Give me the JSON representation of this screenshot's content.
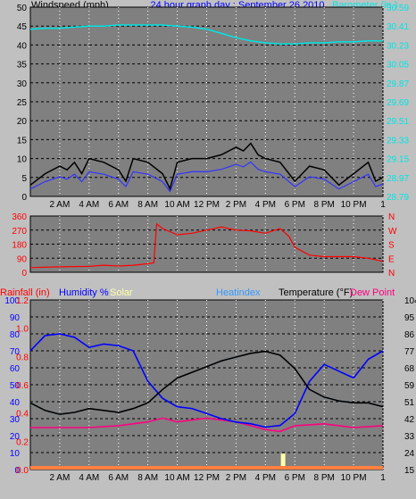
{
  "header": {
    "left_label": "Windspeed (mph)",
    "title": "24 hour graph day : September 26 2010",
    "right_label": "Barometer (in.)"
  },
  "colors": {
    "panel": "#808080",
    "grid_h": "#000000",
    "grid_v": "#ffffff",
    "wind": "#000000",
    "wind_avg": "#3333ff",
    "barometer": "#00e5e5",
    "direction": "#ff0000",
    "humidity": "#0000ff",
    "temperature": "#000000",
    "dew_point": "#ff0080",
    "heat_index": "#3399ff",
    "rain": "#ff8040",
    "solar": "#ffffaa",
    "rain_label": "#ff0000",
    "humidity_label": "#0000ff",
    "solar_label": "#ffffaa",
    "heatindex_label": "#3399ff",
    "temperature_label": "#000000",
    "dewpoint_label": "#ff0080"
  },
  "chart_data": [
    {
      "type": "line",
      "name": "wind_barometer",
      "x_unit": "hour",
      "xlim": [
        0,
        24
      ],
      "x_ticks": [
        "2 AM",
        "4 AM",
        "6 AM",
        "8 AM",
        "10 AM",
        "12 PM",
        "2 PM",
        "4 PM",
        "6 PM",
        "8 PM",
        "10 PM",
        "1"
      ],
      "x_tick_hours": [
        2,
        4,
        6,
        8,
        10,
        12,
        14,
        16,
        18,
        20,
        22,
        24
      ],
      "ylabel_left": "Windspeed (mph)",
      "ylim_left": [
        0,
        50
      ],
      "y_ticks_left": [
        "0",
        "5",
        "10",
        "15",
        "20",
        "25",
        "30",
        "35",
        "40",
        "45",
        "50"
      ],
      "ylabel_right": "Barometer (in.)",
      "ylim_right": [
        28.79,
        30.59
      ],
      "y_ticks_right": [
        "28.79",
        "28.97",
        "29.15",
        "29.33",
        "29.51",
        "29.69",
        "29.87",
        "30.05",
        "30.23",
        "30.41",
        "30.59"
      ],
      "series": [
        {
          "name": "Windspeed",
          "axis": "left",
          "x": [
            0,
            1,
            2,
            2.5,
            3,
            3.5,
            4,
            5,
            6,
            6.5,
            7,
            8,
            9,
            9.5,
            10,
            11,
            12,
            13,
            14,
            14.5,
            15,
            15.5,
            16,
            17,
            18,
            18.5,
            19,
            20,
            21,
            22,
            23,
            23.5,
            24
          ],
          "y": [
            3,
            6,
            8,
            7,
            9,
            6,
            10,
            9,
            7,
            4,
            10,
            9,
            6,
            2,
            9,
            10,
            10,
            11,
            13,
            12,
            14,
            11,
            10,
            9,
            4,
            6,
            8,
            7,
            3,
            6,
            9,
            4,
            5
          ]
        },
        {
          "name": "Barometer",
          "axis": "right",
          "x": [
            0,
            1,
            2,
            3,
            4,
            5,
            6,
            7,
            8,
            9,
            10,
            11,
            12,
            13,
            14,
            15,
            16,
            17,
            18,
            19,
            20,
            21,
            22,
            23,
            24
          ],
          "y": [
            30.38,
            30.39,
            30.39,
            30.4,
            30.41,
            30.41,
            30.42,
            30.42,
            30.42,
            30.42,
            30.41,
            30.4,
            30.38,
            30.34,
            30.3,
            30.27,
            30.25,
            30.24,
            30.24,
            30.25,
            30.25,
            30.26,
            30.26,
            30.27,
            30.27
          ]
        }
      ]
    },
    {
      "type": "line",
      "name": "wind_direction",
      "xlim": [
        0,
        24
      ],
      "ylim": [
        0,
        360
      ],
      "y_ticks_left": [
        "0",
        "90",
        "180",
        "270",
        "360"
      ],
      "y_ticks_right": [
        "N",
        "E",
        "S",
        "W",
        "N"
      ],
      "series": [
        {
          "name": "Wind direction",
          "x": [
            0,
            2,
            4,
            5,
            6,
            7,
            8,
            8.4,
            8.6,
            9,
            10,
            11,
            12,
            13,
            14,
            15,
            16,
            17,
            17.6,
            18,
            19,
            20,
            21,
            22,
            23,
            24
          ],
          "y": [
            30,
            35,
            38,
            45,
            40,
            45,
            55,
            60,
            310,
            280,
            240,
            250,
            270,
            290,
            270,
            265,
            250,
            280,
            230,
            160,
            110,
            100,
            100,
            100,
            90,
            70
          ]
        }
      ]
    },
    {
      "type": "line",
      "name": "temperature_humidity",
      "xlim": [
        0,
        24
      ],
      "ylim_rain": [
        0,
        1.2
      ],
      "y_ticks_rain": [
        "0.0",
        "0.2",
        "0.4",
        "0.6",
        "0.8",
        "1.0",
        "1.2"
      ],
      "ylim_humidity": [
        0,
        100
      ],
      "y_ticks_humidity": [
        "0",
        "10",
        "20",
        "30",
        "40",
        "50",
        "60",
        "70",
        "80",
        "90",
        "100"
      ],
      "ylim_temp": [
        15,
        104
      ],
      "y_ticks_temp": [
        "15",
        "24",
        "33",
        "42",
        "51",
        "59",
        "68",
        "77",
        "86",
        "95",
        "104"
      ],
      "labels": [
        "Rainfall (in)",
        "Humidity %",
        "Solar",
        "Heatindex",
        "Temperature (°F)",
        "Dew Point"
      ],
      "series": [
        {
          "name": "Humidity",
          "x": [
            0,
            1,
            2,
            3,
            4,
            5,
            6,
            7,
            8,
            9,
            10,
            11,
            12,
            13,
            14,
            15,
            16,
            17,
            18,
            19,
            20,
            21,
            22,
            23,
            24
          ],
          "y": [
            70,
            79,
            80,
            78,
            72,
            74,
            73,
            70,
            52,
            42,
            37,
            36,
            33,
            30,
            28,
            27,
            25,
            26,
            33,
            52,
            62,
            58,
            54,
            65,
            70
          ]
        },
        {
          "name": "Temperature",
          "x": [
            0,
            1,
            2,
            3,
            4,
            5,
            6,
            7,
            8,
            9,
            10,
            11,
            12,
            13,
            14,
            15,
            16,
            17,
            18,
            19,
            20,
            21,
            22,
            23,
            24
          ],
          "y": [
            50,
            46,
            44,
            45,
            47,
            46,
            45,
            47,
            50,
            57,
            63,
            66,
            69,
            72,
            74,
            76,
            77,
            75,
            68,
            57,
            53,
            51,
            50,
            50,
            48
          ]
        },
        {
          "name": "Heatindex",
          "x": [
            0,
            1,
            2,
            3,
            4,
            5,
            6,
            7,
            8,
            9,
            10,
            11,
            12,
            13,
            14,
            15,
            16,
            17,
            18,
            19,
            20,
            21,
            22,
            23,
            24
          ],
          "y": [
            50,
            46,
            44,
            45,
            47,
            46,
            45,
            47,
            50,
            57,
            63,
            66,
            69,
            72,
            74,
            76,
            77,
            75,
            68,
            57,
            53,
            51,
            50,
            50,
            48
          ]
        },
        {
          "name": "Dew Point",
          "x": [
            0,
            2,
            4,
            6,
            8,
            9,
            10,
            12,
            14,
            16,
            17,
            18,
            20,
            22,
            24
          ],
          "y": [
            37,
            37,
            37,
            38,
            40,
            42,
            40,
            42,
            40,
            36,
            35,
            38,
            39,
            37,
            38
          ]
        },
        {
          "name": "Rainfall",
          "x": [
            0,
            24
          ],
          "y": [
            0,
            0
          ]
        },
        {
          "name": "Solar",
          "x": [
            17.0,
            17.2,
            17.3
          ],
          "y": [
            0,
            18,
            0
          ]
        }
      ]
    }
  ]
}
